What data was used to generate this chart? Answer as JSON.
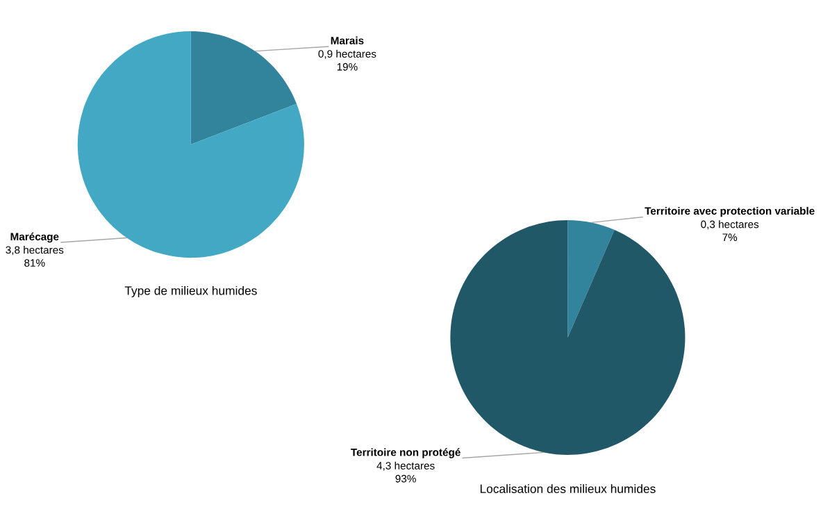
{
  "chart_data": [
    {
      "type": "pie",
      "title": "Type de milieux humides",
      "categories": [
        "Marais",
        "Marécage"
      ],
      "values": [
        0.9,
        3.8
      ],
      "colors": [
        "#31849b",
        "#42a8c4"
      ],
      "value_labels": [
        "0,9 hectares\n19%",
        "3,8 hectares\n81%"
      ],
      "legend": false
    },
    {
      "type": "pie",
      "title": "Localisation des milieux humides",
      "categories": [
        "Territoire avec protection variable",
        "Territoire non protégé"
      ],
      "values": [
        0.3,
        4.3
      ],
      "colors": [
        "#31849b",
        "#215868"
      ],
      "value_labels": [
        "0,3 hectares\n7%",
        "4,3 hectares\n93%"
      ],
      "legend": false
    }
  ]
}
